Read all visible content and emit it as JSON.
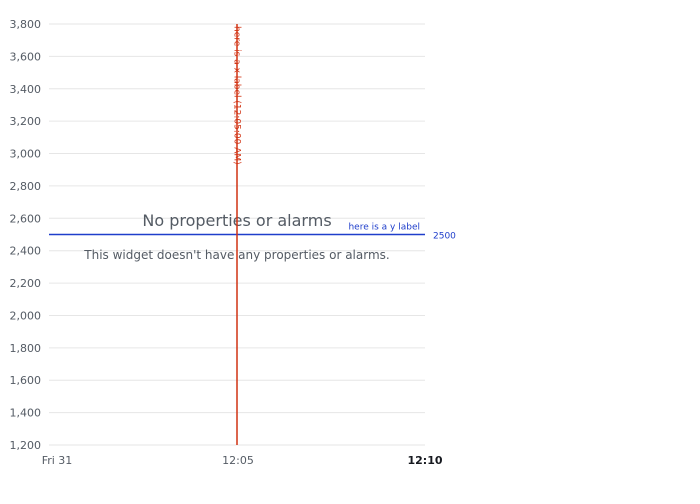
{
  "chart_data": {
    "type": "line",
    "title": "",
    "xlabel": "",
    "ylabel": "",
    "series": [],
    "ylim": [
      1200,
      3800
    ],
    "y_ticks": [
      1200,
      1400,
      1600,
      1800,
      2000,
      2200,
      2400,
      2600,
      2800,
      3000,
      3200,
      3400,
      3600,
      3800
    ],
    "y_tick_labels": [
      "1,200",
      "1,400",
      "1,600",
      "1,800",
      "2,000",
      "2,200",
      "2,400",
      "2,600",
      "2,800",
      "3,000",
      "3,200",
      "3,400",
      "3,600",
      "3,800"
    ],
    "x_ticks": [
      {
        "label": "Fri 31",
        "bold": false
      },
      {
        "label": "12:05",
        "bold": false
      },
      {
        "label": "12:10",
        "bold": true
      }
    ],
    "grid": true,
    "threshold_y": {
      "value": 2500,
      "value_label": "2500",
      "label": "here is a y label",
      "color": "#1f3ecb"
    },
    "threshold_x": {
      "label": "here is a x label (12:05:00 AM)",
      "color": "#d13212"
    },
    "empty_state": {
      "heading": "No properties or alarms",
      "message": "This widget doesn't have any properties or alarms."
    },
    "colors": {
      "grid": "#e6e6e6",
      "axis_text": "#545b64",
      "axis_text_bold": "#16191f",
      "empty_text": "#545b64"
    }
  }
}
